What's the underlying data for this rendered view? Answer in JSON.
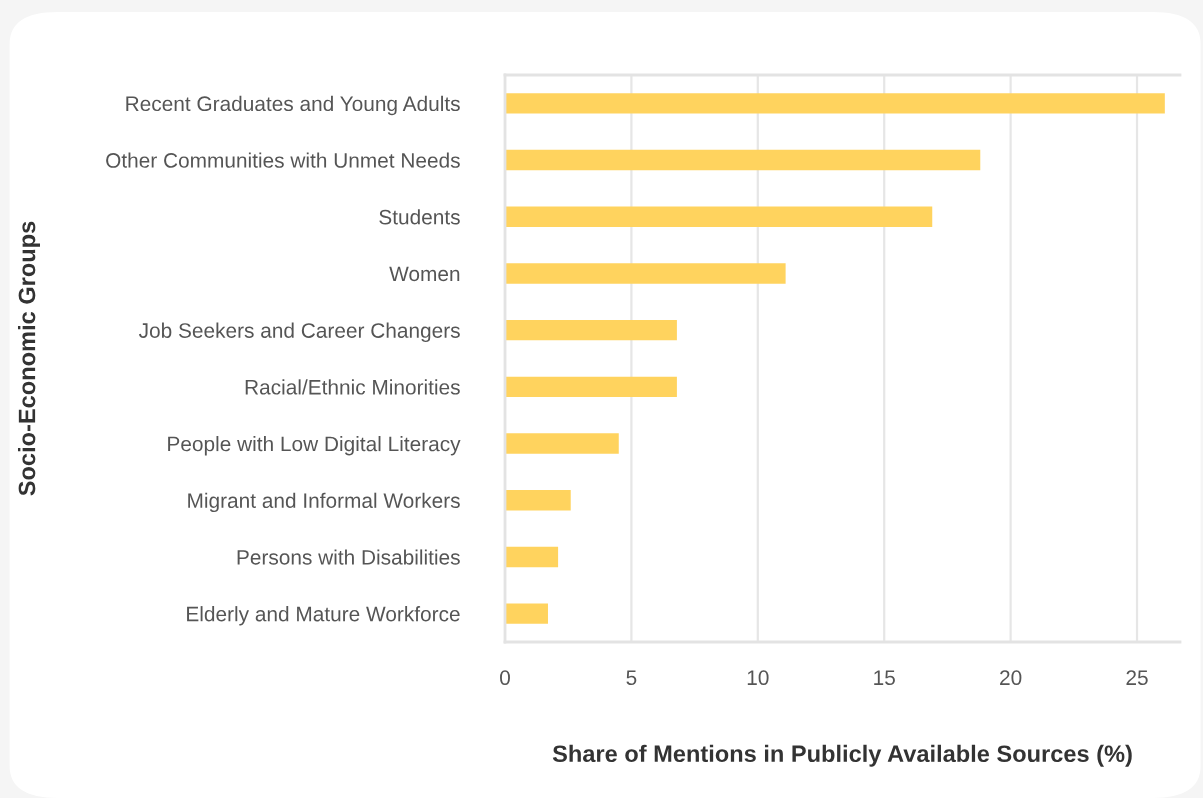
{
  "chart_data": {
    "type": "bar",
    "orientation": "horizontal",
    "xlabel": "Share of Mentions in Publicly Available Sources (%)",
    "ylabel": "Socio-Economic Groups",
    "categories": [
      "Recent Graduates and Young Adults",
      "Other Communities with Unmet Needs",
      "Students",
      "Women",
      "Job Seekers and Career Changers",
      "Racial/Ethnic Minorities",
      "People with Low Digital Literacy",
      "Migrant and Informal Workers",
      "Persons with Disabilities",
      "Elderly and Mature Workforce"
    ],
    "values": [
      26.1,
      18.8,
      16.9,
      11.1,
      6.8,
      6.8,
      4.5,
      2.6,
      2.1,
      1.7
    ],
    "color": "#ffd35e",
    "xlim": [
      0,
      26.7
    ],
    "xticks": [
      0,
      5,
      10,
      15,
      20,
      25
    ],
    "grid": "x"
  }
}
